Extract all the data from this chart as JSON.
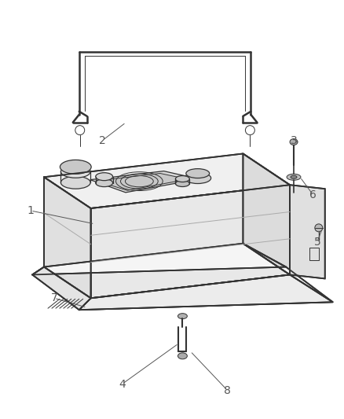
{
  "bg_color": "#ffffff",
  "line_color": "#333333",
  "label_color": "#555555",
  "figsize": [
    4.38,
    5.33
  ],
  "dpi": 100,
  "lw_main": 1.3,
  "lw_thin": 0.7,
  "lw_detail": 0.9
}
